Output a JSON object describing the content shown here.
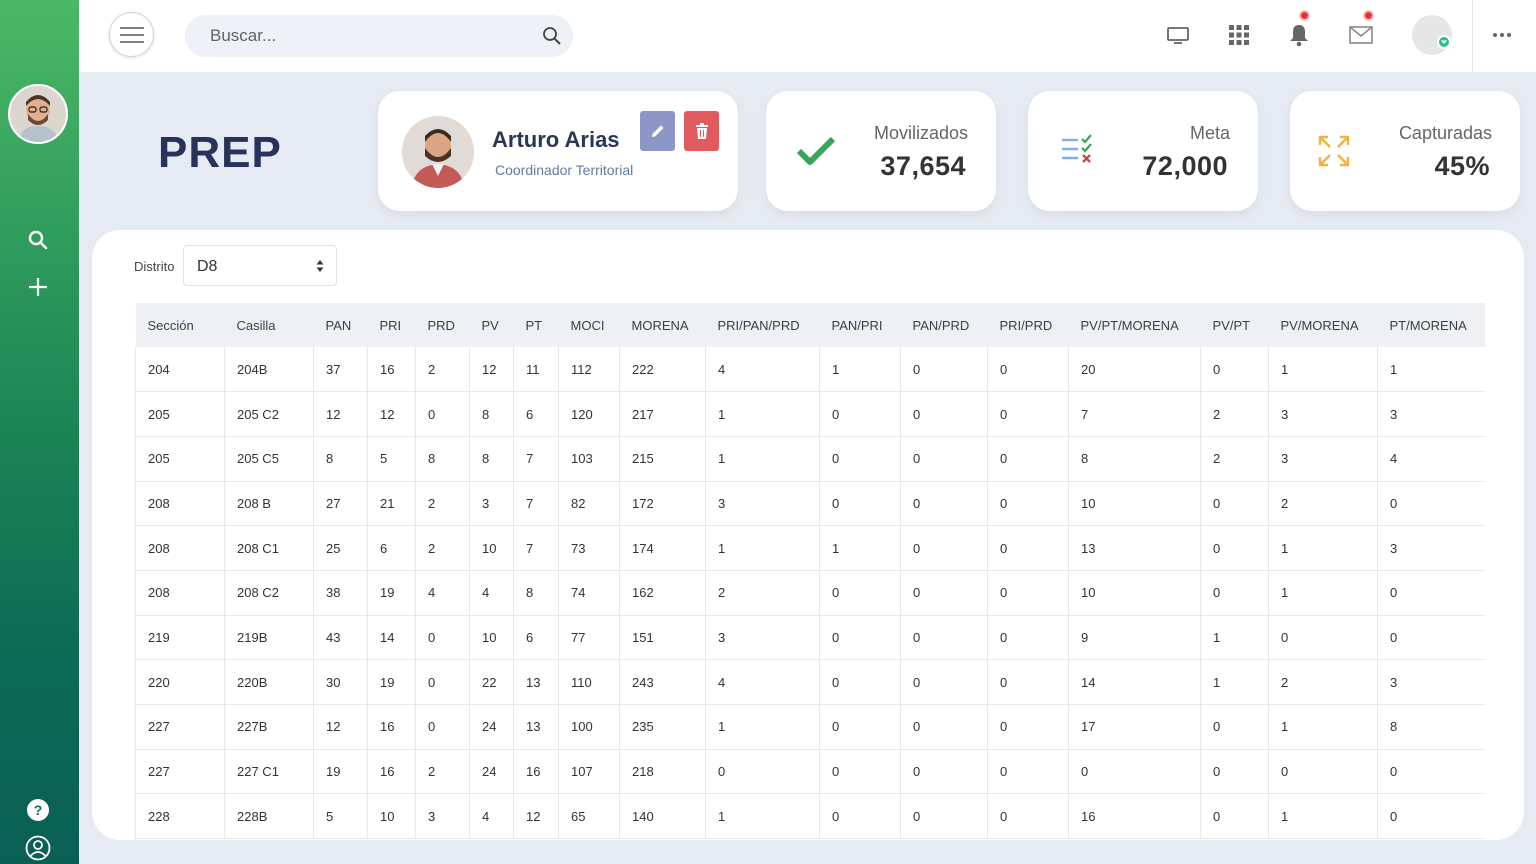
{
  "search": {
    "placeholder": "Buscar..."
  },
  "page_title": "PREP",
  "profile": {
    "name": "Arturo Arias",
    "role": "Coordinador Territorial"
  },
  "stats": [
    {
      "label": "Movilizados",
      "value": "37,654",
      "icon": "check-icon",
      "color": "#3aa35c"
    },
    {
      "label": "Meta",
      "value": "72,000",
      "icon": "checklist-icon",
      "color": "#6aa0e0"
    },
    {
      "label": "Capturadas",
      "value": "45%",
      "icon": "expand-icon",
      "color": "#f2b33a"
    }
  ],
  "filter": {
    "label": "Distrito",
    "value": "D8"
  },
  "table": {
    "columns": [
      "Sección",
      "Casilla",
      "PAN",
      "PRI",
      "PRD",
      "PV",
      "PT",
      "MOCI",
      "MORENA",
      "PRI/PAN/PRD",
      "PAN/PRI",
      "PAN/PRD",
      "PRI/PRD",
      "PV/PT/MORENA",
      "PV/PT",
      "PV/MORENA",
      "PT/MORENA"
    ],
    "rows": [
      [
        "204",
        "204B",
        "37",
        "16",
        "2",
        "12",
        "11",
        "112",
        "222",
        "4",
        "1",
        "0",
        "0",
        "20",
        "0",
        "1",
        "1"
      ],
      [
        "205",
        "205 C2",
        "12",
        "12",
        "0",
        "8",
        "6",
        "120",
        "217",
        "1",
        "0",
        "0",
        "0",
        "7",
        "2",
        "3",
        "3"
      ],
      [
        "205",
        "205 C5",
        "8",
        "5",
        "8",
        "8",
        "7",
        "103",
        "215",
        "1",
        "0",
        "0",
        "0",
        "8",
        "2",
        "3",
        "4"
      ],
      [
        "208",
        "208 B",
        "27",
        "21",
        "2",
        "3",
        "7",
        "82",
        "172",
        "3",
        "0",
        "0",
        "0",
        "10",
        "0",
        "2",
        "0"
      ],
      [
        "208",
        "208 C1",
        "25",
        "6",
        "2",
        "10",
        "7",
        "73",
        "174",
        "1",
        "1",
        "0",
        "0",
        "13",
        "0",
        "1",
        "3"
      ],
      [
        "208",
        "208 C2",
        "38",
        "19",
        "4",
        "4",
        "8",
        "74",
        "162",
        "2",
        "0",
        "0",
        "0",
        "10",
        "0",
        "1",
        "0"
      ],
      [
        "219",
        "219B",
        "43",
        "14",
        "0",
        "10",
        "6",
        "77",
        "151",
        "3",
        "0",
        "0",
        "0",
        "9",
        "1",
        "0",
        "0"
      ],
      [
        "220",
        "220B",
        "30",
        "19",
        "0",
        "22",
        "13",
        "110",
        "243",
        "4",
        "0",
        "0",
        "0",
        "14",
        "1",
        "2",
        "3"
      ],
      [
        "227",
        "227B",
        "12",
        "16",
        "0",
        "24",
        "13",
        "100",
        "235",
        "1",
        "0",
        "0",
        "0",
        "17",
        "0",
        "1",
        "8"
      ],
      [
        "227",
        "227 C1",
        "19",
        "16",
        "2",
        "24",
        "16",
        "107",
        "218",
        "0",
        "0",
        "0",
        "0",
        "0",
        "0",
        "0",
        "0"
      ],
      [
        "228",
        "228B",
        "5",
        "10",
        "3",
        "4",
        "12",
        "65",
        "140",
        "1",
        "0",
        "0",
        "0",
        "16",
        "0",
        "1",
        "0"
      ]
    ]
  }
}
